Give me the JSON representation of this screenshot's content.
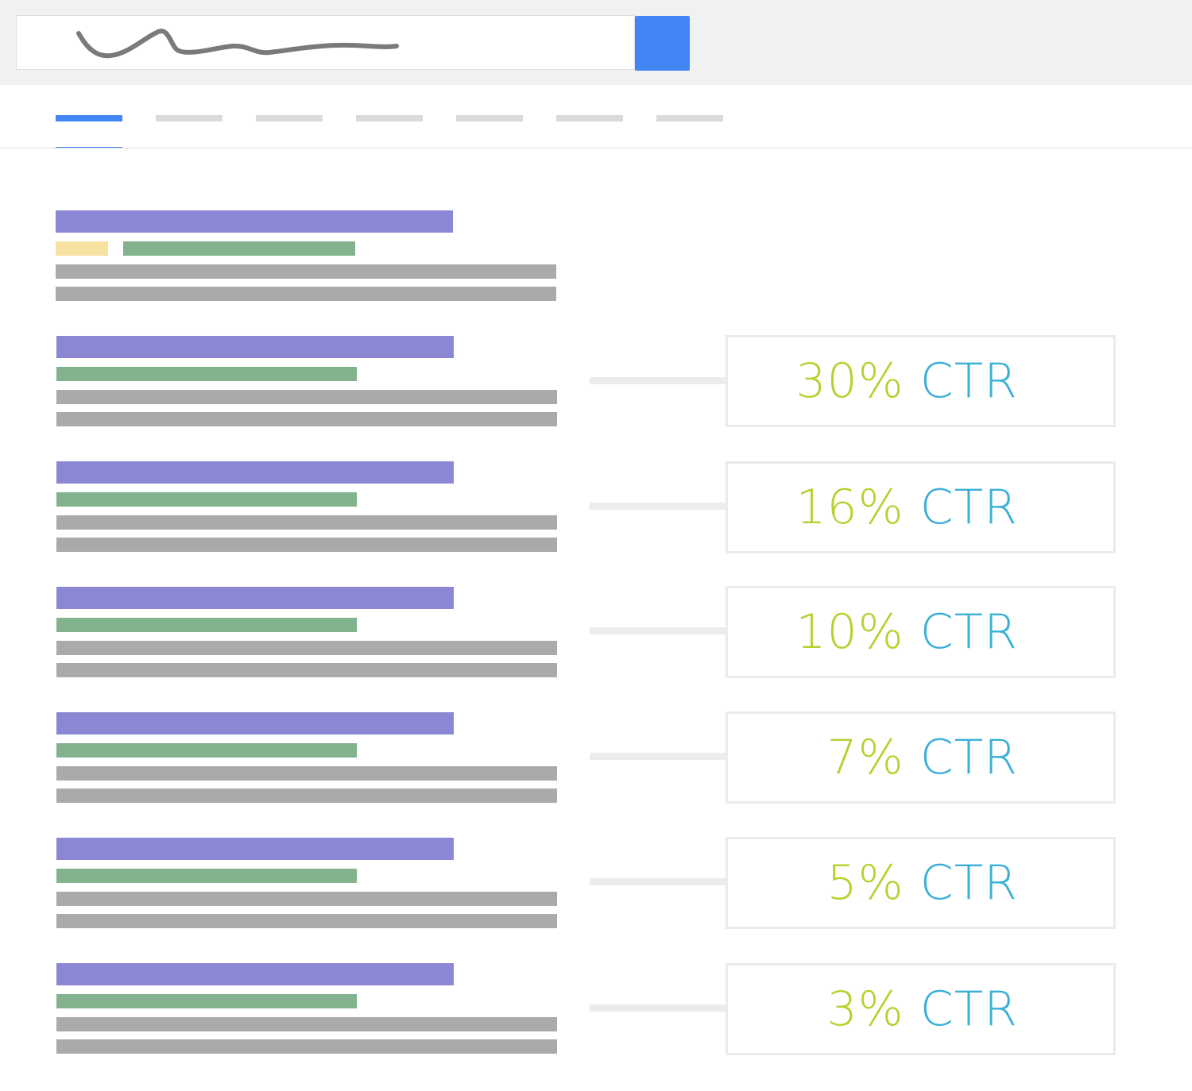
{
  "search": {
    "button_icon": "search-icon",
    "button_color": "#4285f4"
  },
  "tabs": [
    {
      "active": true
    },
    {
      "active": false
    },
    {
      "active": false
    },
    {
      "active": false
    },
    {
      "active": false
    },
    {
      "active": false
    },
    {
      "active": false
    }
  ],
  "colors": {
    "accent": "#4285f4",
    "result_title": "#8b87d5",
    "result_url": "#82b28e",
    "ad_badge": "#f7e1a0",
    "result_description": "#aaaaaa",
    "ctr_percent": "#b9cf2e",
    "ctr_label": "#3ab0d6"
  },
  "results": [
    {
      "is_ad": true
    },
    {
      "is_ad": false,
      "ctr": "30%",
      "ctr_label": "CTR"
    },
    {
      "is_ad": false,
      "ctr": "16%",
      "ctr_label": "CTR"
    },
    {
      "is_ad": false,
      "ctr": "10%",
      "ctr_label": "CTR"
    },
    {
      "is_ad": false,
      "ctr": "7%",
      "ctr_label": "CTR"
    },
    {
      "is_ad": false,
      "ctr": "5%",
      "ctr_label": "CTR"
    },
    {
      "is_ad": false,
      "ctr": "3%",
      "ctr_label": "CTR"
    }
  ]
}
